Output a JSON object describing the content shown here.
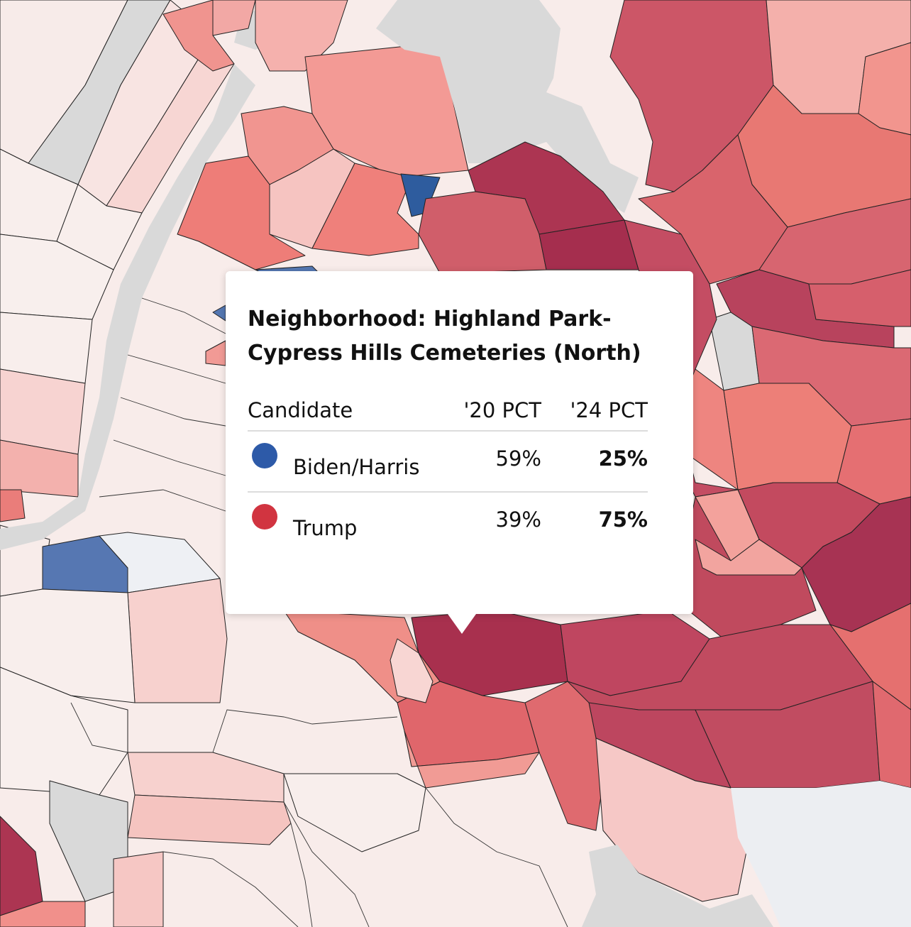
{
  "tooltip": {
    "title": "Neighborhood: Highland Park-Cypress Hills Cemeteries (North)",
    "columns": {
      "candidate": "Candidate",
      "pct20": "'20 PCT",
      "pct24": "'24 PCT"
    },
    "rows": [
      {
        "candidate": "Biden/Harris",
        "pct20": "59%",
        "pct24": "25%",
        "color": "#2d5aa8"
      },
      {
        "candidate": "Trump",
        "pct20": "39%",
        "pct24": "75%",
        "color": "#d13440"
      }
    ]
  },
  "legend_colors": {
    "dem": "#3565a8",
    "rep_strong": "#a8314f",
    "rep_mid": "#d06a70",
    "rep_light": "#f3a7a2",
    "rep_faint": "#f8e8e6",
    "no_data": "#d9d9d9"
  }
}
